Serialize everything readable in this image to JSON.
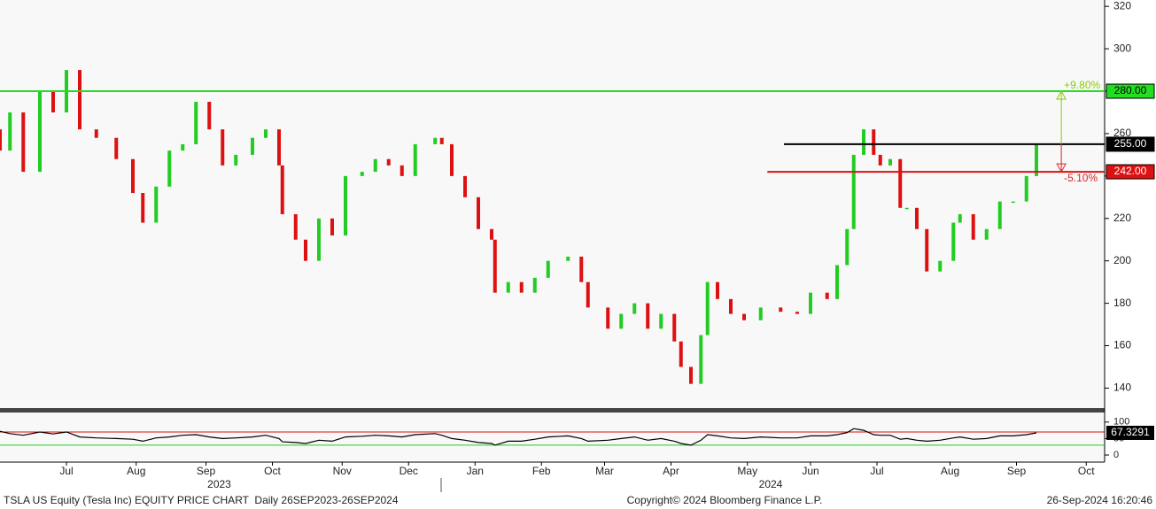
{
  "chart_data": [
    {
      "type": "candlestick",
      "x": [
        0,
        3,
        7,
        12,
        16,
        20,
        24,
        29,
        35,
        40,
        43,
        47,
        51,
        55,
        59,
        63,
        67,
        71,
        76,
        80,
        84,
        85,
        89,
        92,
        96,
        100,
        104,
        109,
        113,
        117,
        121,
        125,
        131,
        133,
        136,
        140,
        144,
        148,
        149,
        153,
        157,
        161,
        165,
        171,
        175,
        177,
        183,
        187,
        191,
        195,
        199,
        203,
        205,
        208,
        211,
        213,
        216,
        220,
        224,
        229,
        235,
        240,
        244,
        249,
        252,
        255,
        257,
        260,
        263,
        265,
        268,
        271,
        273,
        276,
        279,
        283,
        287,
        289,
        293,
        297,
        301,
        305,
        309,
        312
      ],
      "open": [
        262,
        252,
        270,
        242,
        280,
        270,
        290,
        262,
        258,
        248,
        232,
        218,
        235,
        252,
        255,
        275,
        262,
        245,
        250,
        258,
        262,
        245,
        222,
        210,
        200,
        220,
        212,
        240,
        242,
        248,
        245,
        240,
        255,
        258,
        255,
        240,
        230,
        215,
        210,
        185,
        190,
        185,
        192,
        200,
        202,
        190,
        178,
        168,
        175,
        180,
        168,
        175,
        162,
        150,
        142,
        165,
        190,
        182,
        175,
        172,
        178,
        176,
        175,
        185,
        182,
        198,
        215,
        250,
        262,
        250,
        245,
        248,
        225,
        225,
        215,
        195,
        200,
        218,
        222,
        210,
        215,
        228,
        228,
        240
      ],
      "close": [
        252,
        270,
        242,
        280,
        270,
        290,
        262,
        258,
        248,
        232,
        218,
        235,
        252,
        255,
        275,
        262,
        245,
        250,
        258,
        262,
        245,
        222,
        210,
        200,
        220,
        212,
        240,
        242,
        248,
        245,
        240,
        255,
        258,
        255,
        240,
        230,
        215,
        210,
        185,
        190,
        185,
        192,
        200,
        202,
        190,
        178,
        168,
        175,
        180,
        168,
        175,
        162,
        150,
        142,
        165,
        190,
        182,
        175,
        172,
        178,
        176,
        175,
        185,
        182,
        198,
        215,
        250,
        262,
        250,
        245,
        248,
        225,
        225,
        215,
        195,
        200,
        218,
        222,
        210,
        215,
        228,
        228,
        240,
        255
      ],
      "up_color": "#22cc22",
      "down_color": "#dd1111",
      "xlim": [
        0,
        332
      ],
      "ylim": [
        131,
        323
      ],
      "yticks": [
        140,
        160,
        180,
        200,
        220,
        240,
        260,
        280,
        300,
        320
      ],
      "xticks": [
        {
          "value": 20,
          "label": "Jul"
        },
        {
          "value": 41,
          "label": "Aug"
        },
        {
          "value": 62,
          "label": "Sep"
        },
        {
          "value": 82,
          "label": "Oct"
        },
        {
          "value": 103,
          "label": "Nov"
        },
        {
          "value": 123,
          "label": "Dec"
        },
        {
          "value": 143,
          "label": "Jan"
        },
        {
          "value": 163,
          "label": "Feb"
        },
        {
          "value": 182,
          "label": "Mar"
        },
        {
          "value": 202,
          "label": "Apr"
        },
        {
          "value": 225,
          "label": "May"
        },
        {
          "value": 244,
          "label": "Jun"
        },
        {
          "value": 264,
          "label": "Jul"
        },
        {
          "value": 286,
          "label": "Aug"
        },
        {
          "value": 306,
          "label": "Sep"
        },
        {
          "value": 327,
          "label": "Oct"
        }
      ],
      "xgroups": [
        {
          "value": 66,
          "label": "2023"
        },
        {
          "value": 232,
          "label": "2024"
        }
      ],
      "levels": [
        {
          "value": 280,
          "label": "280.00",
          "color": "#22dd22",
          "text_color": "#000000",
          "start": 0
        },
        {
          "value": 255,
          "label": "255.00",
          "color": "#000000",
          "text_color": "#ffffff",
          "start": 236
        },
        {
          "value": 242,
          "label": "242.00",
          "color": "#dd1111",
          "text_color": "#ffffff",
          "start": 231
        }
      ],
      "annotation_x": 319.5,
      "annotations": [
        {
          "text": "+9.80%",
          "from": 255,
          "to": 280,
          "color": "#88cc00"
        },
        {
          "text": "-5.10%",
          "from": 255,
          "to": 242,
          "color": "#dd2222"
        }
      ]
    },
    {
      "type": "line",
      "values": [
        72,
        65,
        60,
        70,
        64,
        70,
        55,
        52,
        50,
        48,
        42,
        52,
        55,
        60,
        62,
        55,
        50,
        52,
        55,
        60,
        50,
        40,
        38,
        35,
        45,
        42,
        55,
        57,
        60,
        58,
        55,
        62,
        65,
        60,
        50,
        45,
        38,
        35,
        30,
        42,
        42,
        48,
        55,
        58,
        50,
        42,
        45,
        50,
        55,
        45,
        50,
        42,
        35,
        30,
        45,
        62,
        58,
        52,
        50,
        55,
        52,
        52,
        58,
        58,
        62,
        68,
        80,
        75,
        62,
        60,
        60,
        48,
        50,
        45,
        42,
        45,
        52,
        55,
        48,
        50,
        58,
        58,
        62,
        67.3291
      ],
      "color": "#000000",
      "ylim": [
        -16,
        129
      ],
      "yticks": [
        0,
        50,
        100
      ],
      "bands": [
        {
          "value": 70,
          "color": "#dd1111"
        },
        {
          "value": 30,
          "color": "#22cc22"
        }
      ]
    }
  ],
  "footer": {
    "left": "TSLA US Equity (Tesla Inc) EQUITY PRICE CHART  Daily 26SEP2023-26SEP2024",
    "center": "Copyright© 2024 Bloomberg Finance L.P.",
    "right": "26-Sep-2024 16:20:46"
  }
}
